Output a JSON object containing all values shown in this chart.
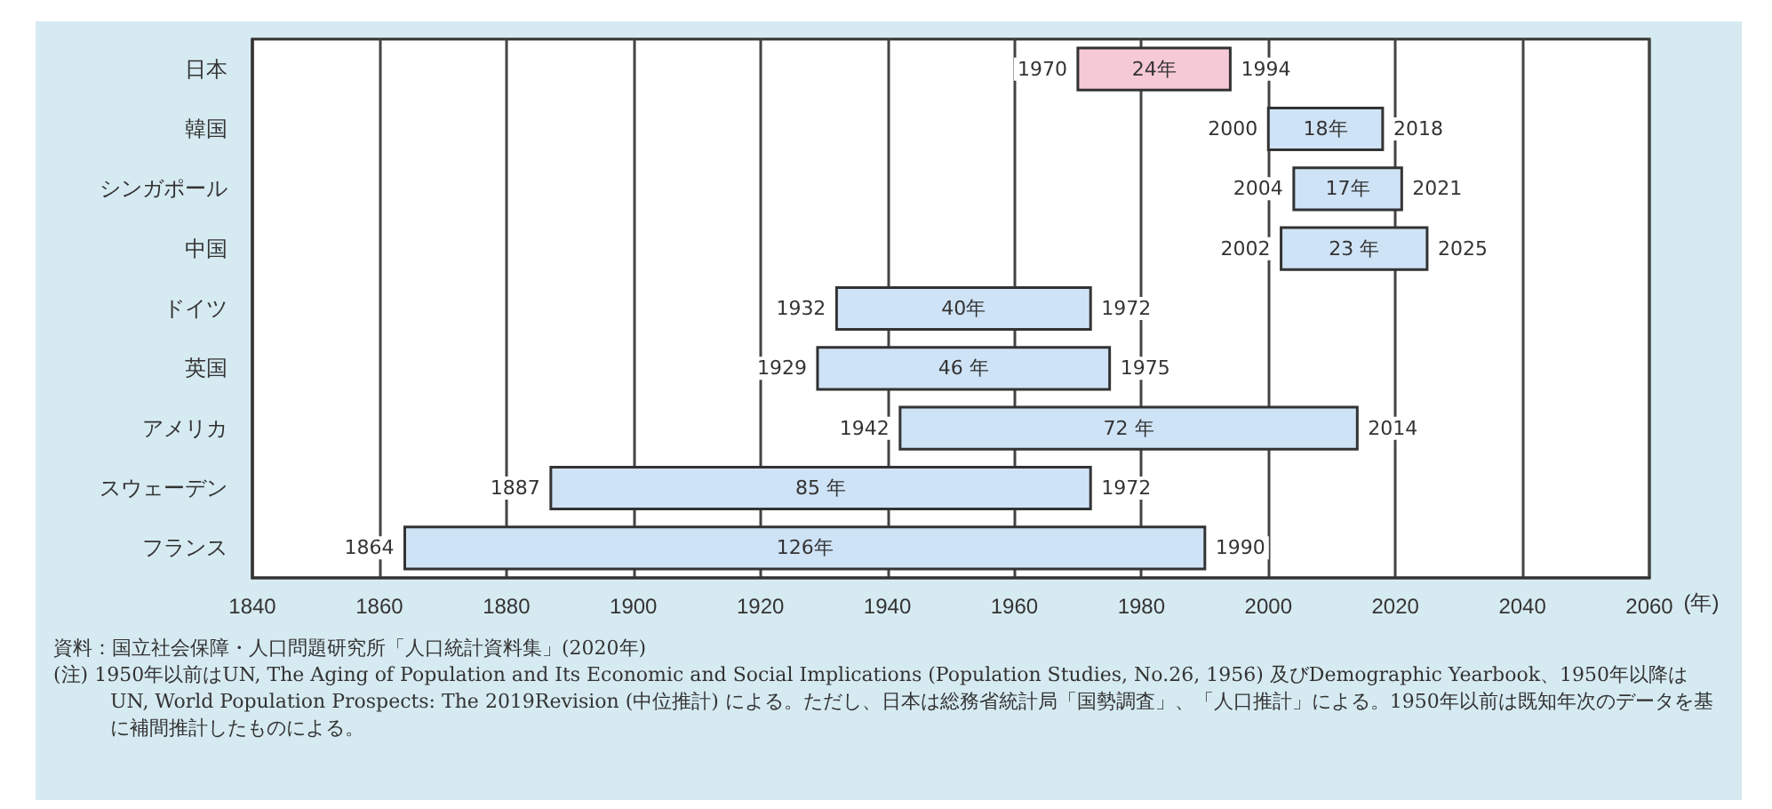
{
  "chart_data": {
    "type": "bar",
    "orientation": "horizontal",
    "categories": [
      "日本",
      "韓国",
      "シンガポール",
      "中国",
      "ドイツ",
      "英国",
      "アメリカ",
      "スウェーデン",
      "フランス"
    ],
    "base": [
      1970,
      2000,
      2004,
      2002,
      1932,
      1929,
      1942,
      1887,
      1864
    ],
    "values": [
      24,
      18,
      17,
      23,
      40,
      46,
      72,
      85,
      126
    ],
    "value_labels": [
      "24年",
      "18年",
      "17年",
      "23 年",
      "40年",
      "46 年",
      "72 年",
      "85 年",
      "126年"
    ],
    "colors": [
      "#f6c9d6",
      "#cfe3f6",
      "#cfe3f6",
      "#cfe3f6",
      "#cfe3f6",
      "#cfe3f6",
      "#cfe3f6",
      "#cfe3f6",
      "#cfe3f6"
    ],
    "xlim": [
      1840,
      2060
    ],
    "xticks": [
      1840,
      1860,
      1880,
      1900,
      1920,
      1940,
      1960,
      1980,
      2000,
      2020,
      2040,
      2060
    ],
    "xlabel": "(年)",
    "grid": "x",
    "annotations": [
      {
        "text": "1970",
        "x": 1970,
        "y": "日本"
      },
      {
        "text": "1994",
        "x": 1994,
        "y": "日本"
      },
      {
        "text": "2000",
        "x": 2000,
        "y": "韓国"
      },
      {
        "text": "2018",
        "x": 2018,
        "y": "韓国"
      },
      {
        "text": "2004",
        "x": 2004,
        "y": "シンガポール"
      },
      {
        "text": "2021",
        "x": 2021,
        "y": "シンガポール"
      },
      {
        "text": "2002",
        "x": 2002,
        "y": "中国"
      },
      {
        "text": "2025",
        "x": 2025,
        "y": "中国"
      },
      {
        "text": "1932",
        "x": 1932,
        "y": "ドイツ"
      },
      {
        "text": "1972",
        "x": 1972,
        "y": "ドイツ"
      },
      {
        "text": "1929",
        "x": 1929,
        "y": "英国"
      },
      {
        "text": "1975",
        "x": 1975,
        "y": "英国"
      },
      {
        "text": "1942",
        "x": 1942,
        "y": "アメリカ"
      },
      {
        "text": "2014",
        "x": 2014,
        "y": "アメリカ"
      },
      {
        "text": "1887",
        "x": 1887,
        "y": "スウェーデン"
      },
      {
        "text": "1972",
        "x": 1972,
        "y": "スウェーデン"
      },
      {
        "text": "1864",
        "x": 1864,
        "y": "フランス"
      },
      {
        "text": "1990",
        "x": 1990,
        "y": "フランス"
      },
      "資料：国立社会保障・人口問題研究所「人口統計資料集」(2020年)",
      "(注) 1950年以前はUN, The Aging of Population and Its Economic and Social Implications (Population Studies, No.26, 1956) 及びDemographic Yearbook、1950年以降はUN, World Population Prospects: The 2019Revision (中位推計) による。ただし、日本は総務省統計局「国勢調査」、「人口推計」による。1950年以前は既知年次のデータを基に補間推計したものによる。"
    ]
  }
}
